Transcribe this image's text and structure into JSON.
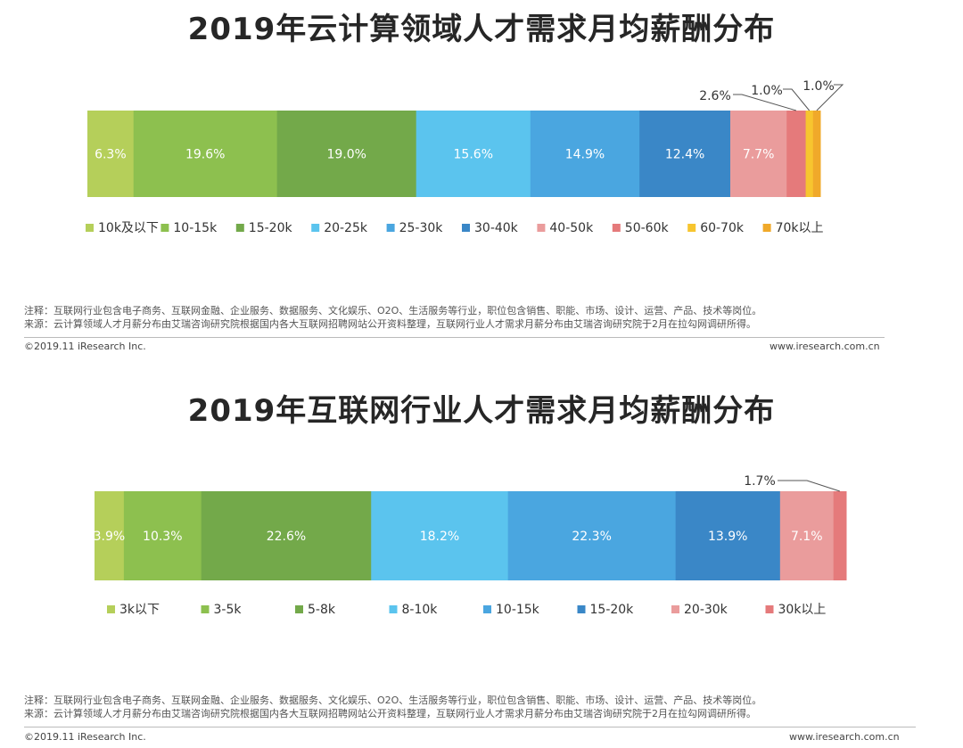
{
  "chart_data": [
    {
      "type": "stacked-bar-100",
      "title": "2019年云计算领域人才需求月均薪酬分布",
      "categories": [
        "10k及以下",
        "10-15k",
        "15-20k",
        "20-25k",
        "25-30k",
        "30-40k",
        "40-50k",
        "50-60k",
        "60-70k",
        "70k以上"
      ],
      "values": [
        6.3,
        19.6,
        19.0,
        15.6,
        14.9,
        12.4,
        7.7,
        2.6,
        1.0,
        1.0
      ],
      "value_labels": [
        "6.3%",
        "19.6%",
        "19.0%",
        "15.6%",
        "14.9%",
        "12.4%",
        "7.7%",
        "2.6%",
        "1.0%",
        "1.0%"
      ],
      "colors": [
        "#b5cf5a",
        "#8dc04f",
        "#73a94a",
        "#5bc4ee",
        "#4aa6e0",
        "#3a87c7",
        "#ea9c9c",
        "#e57a7b",
        "#f7c52f",
        "#f0a92a"
      ],
      "legend_position": "bottom",
      "notes": [
        "注释：互联网行业包含电子商务、互联网金融、企业服务、数据服务、文化娱乐、O2O、生活服务等行业，职位包含销售、职能、市场、设计、运营、产品、技术等岗位。",
        "来源：云计算领域人才月薪分布由艾瑞咨询研究院根据国内各大互联网招聘网站公开资料整理，互联网行业人才需求月薪分布由艾瑞咨询研究院于2月在拉勾网调研所得。"
      ],
      "copyright": "©2019.11 iResearch Inc.",
      "website": "www.iresearch.com.cn"
    },
    {
      "type": "stacked-bar-100",
      "title": "2019年互联网行业人才需求月均薪酬分布",
      "categories": [
        "3k以下",
        "3-5k",
        "5-8k",
        "8-10k",
        "10-15k",
        "15-20k",
        "20-30k",
        "30k以上"
      ],
      "values": [
        3.9,
        10.3,
        22.6,
        18.2,
        22.3,
        13.9,
        7.1,
        1.7
      ],
      "value_labels": [
        "3.9%",
        "10.3%",
        "22.6%",
        "18.2%",
        "22.3%",
        "13.9%",
        "7.1%",
        "1.7%"
      ],
      "colors": [
        "#b5cf5a",
        "#8dc04f",
        "#73a94a",
        "#5bc4ee",
        "#4aa6e0",
        "#3a87c7",
        "#ea9c9c",
        "#e57a7b"
      ],
      "legend_position": "bottom",
      "notes": [
        "注释：互联网行业包含电子商务、互联网金融、企业服务、数据服务、文化娱乐、O2O、生活服务等行业，职位包含销售、职能、市场、设计、运营、产品、技术等岗位。",
        "来源：云计算领域人才月薪分布由艾瑞咨询研究院根据国内各大互联网招聘网站公开资料整理，互联网行业人才需求月薪分布由艾瑞咨询研究院于2月在拉勾网调研所得。"
      ],
      "copyright": "©2019.11 iResearch Inc.",
      "website": "www.iresearch.com.cn"
    }
  ]
}
